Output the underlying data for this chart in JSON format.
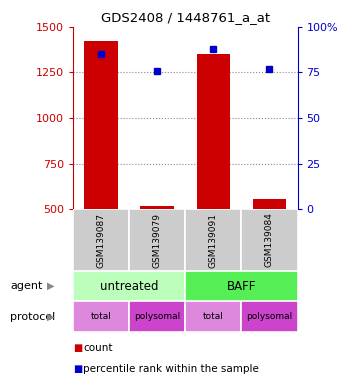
{
  "title": "GDS2408 / 1448761_a_at",
  "samples": [
    "GSM139087",
    "GSM139079",
    "GSM139091",
    "GSM139084"
  ],
  "bar_values": [
    1420,
    520,
    1350,
    555
  ],
  "percentile_values": [
    85,
    76,
    88,
    77
  ],
  "ylim_left": [
    500,
    1500
  ],
  "ylim_right": [
    0,
    100
  ],
  "yticks_left": [
    500,
    750,
    1000,
    1250,
    1500
  ],
  "yticks_right": [
    0,
    25,
    50,
    75,
    100
  ],
  "bar_color": "#cc0000",
  "dot_color": "#0000cc",
  "bar_width": 0.6,
  "agent_labels": [
    "untreated",
    "BAFF"
  ],
  "agent_colors": [
    "#bbffbb",
    "#55ee55"
  ],
  "protocol_labels": [
    "total",
    "polysomal",
    "total",
    "polysomal"
  ],
  "protocol_colors": [
    "#dd88dd",
    "#cc44cc",
    "#dd88dd",
    "#cc44cc"
  ],
  "left_label_color": "#cc0000",
  "right_label_color": "#0000cc",
  "grid_color": "#888888",
  "bg_color": "#ffffff",
  "sample_box_color": "#cccccc",
  "legend_red_color": "#cc0000",
  "legend_blue_color": "#0000cc"
}
